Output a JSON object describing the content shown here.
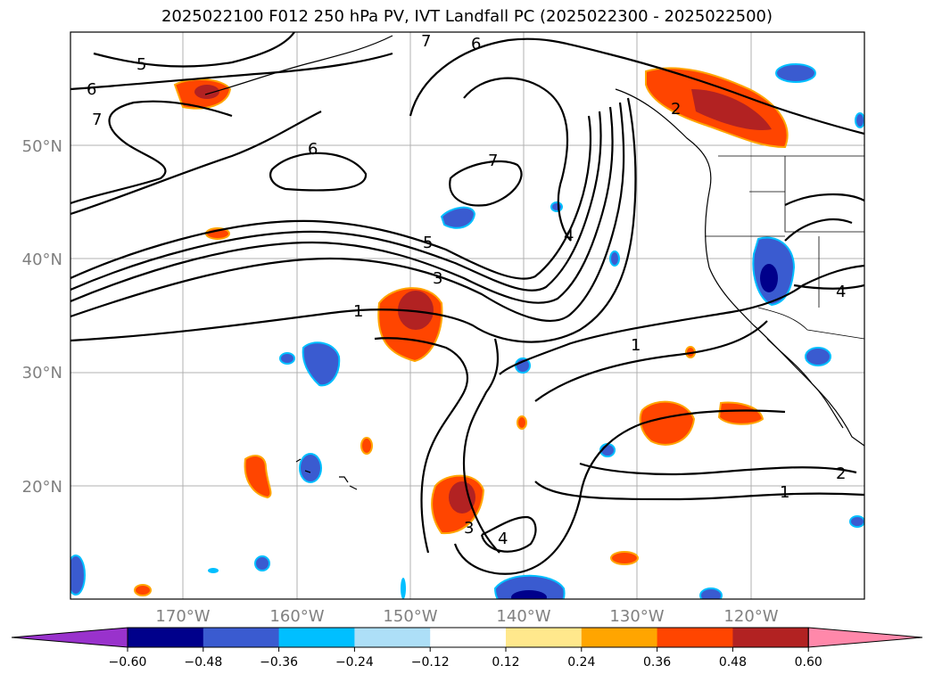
{
  "title": "2025022100 F012 250 hPa PV, IVT Landfall PC (2025022300 - 2025022500)",
  "axes": {
    "lat_ticks": [
      "50°N",
      "40°N",
      "30°N",
      "20°N"
    ],
    "lon_ticks": [
      "170°W",
      "160°W",
      "150°W",
      "140°W",
      "130°W",
      "120°W"
    ]
  },
  "contour_labels": [
    "5",
    "6",
    "7",
    "7",
    "6",
    "6",
    "7",
    "5",
    "3",
    "1",
    "1",
    "2",
    "4",
    "4",
    "2",
    "1",
    "3",
    "4"
  ],
  "colorbar": {
    "tick_labels": [
      "−0.60",
      "−0.48",
      "−0.36",
      "−0.24",
      "−0.12",
      "0.12",
      "0.24",
      "0.36",
      "0.48",
      "0.60"
    ],
    "colors": [
      "#9932CC",
      "#00008B",
      "#3A5BD0",
      "#00BFFF",
      "#ADDFF7",
      "#FFFFFF",
      "#FFE88C",
      "#FFA500",
      "#FF4500",
      "#B22222",
      "#FF88AA"
    ]
  }
}
